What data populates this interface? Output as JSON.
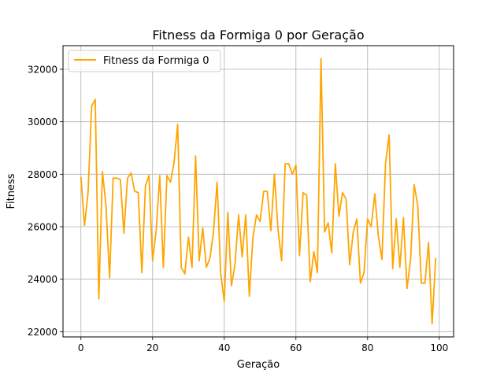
{
  "chart_data": {
    "type": "line",
    "title": "Fitness da Formiga 0 por Geração",
    "xlabel": "Geração",
    "ylabel": "Fitness",
    "xlim": [
      -5,
      104
    ],
    "ylim": [
      21800,
      32900
    ],
    "xticks": [
      0,
      20,
      40,
      60,
      80,
      100
    ],
    "yticks": [
      22000,
      24000,
      26000,
      28000,
      30000,
      32000
    ],
    "grid": true,
    "legend": {
      "position": "top-left"
    },
    "series": [
      {
        "name": "Fitness da Formiga 0",
        "color": "#FFA500",
        "x": [
          0,
          1,
          2,
          3,
          4,
          5,
          6,
          7,
          8,
          9,
          10,
          11,
          12,
          13,
          14,
          15,
          16,
          17,
          18,
          19,
          20,
          21,
          22,
          23,
          24,
          25,
          26,
          27,
          28,
          29,
          30,
          31,
          32,
          33,
          34,
          35,
          36,
          37,
          38,
          39,
          40,
          41,
          42,
          43,
          44,
          45,
          46,
          47,
          48,
          49,
          50,
          51,
          52,
          53,
          54,
          55,
          56,
          57,
          58,
          59,
          60,
          61,
          62,
          63,
          64,
          65,
          66,
          67,
          68,
          69,
          70,
          71,
          72,
          73,
          74,
          75,
          76,
          77,
          78,
          79,
          80,
          81,
          82,
          83,
          84,
          85,
          86,
          87,
          88,
          89,
          90,
          91,
          92,
          93,
          94,
          95,
          96,
          97,
          98,
          99
        ],
        "values": [
          27900,
          26050,
          27300,
          30600,
          30850,
          23250,
          28100,
          26800,
          24050,
          27850,
          27850,
          27800,
          25750,
          27850,
          28050,
          27350,
          27300,
          24250,
          27550,
          27950,
          24700,
          25850,
          27950,
          24450,
          27950,
          27700,
          28450,
          29900,
          24450,
          24200,
          25600,
          24450,
          28700,
          24700,
          25950,
          24450,
          24800,
          25800,
          27700,
          24250,
          23150,
          26550,
          23750,
          24550,
          26450,
          24850,
          26450,
          23350,
          25600,
          26450,
          26200,
          27350,
          27350,
          25850,
          28000,
          25900,
          24700,
          28400,
          28400,
          28000,
          28350,
          24900,
          27300,
          27200,
          23900,
          25050,
          24250,
          32400,
          25800,
          26150,
          25000,
          28400,
          26400,
          27300,
          27050,
          24550,
          25800,
          26300,
          23850,
          24250,
          26300,
          26000,
          27250,
          25650,
          24750,
          28400,
          29500,
          24400,
          26300,
          24450,
          26350,
          23650,
          24750,
          27600,
          26800,
          23850,
          23850,
          25400,
          22300,
          24800
        ]
      }
    ]
  }
}
